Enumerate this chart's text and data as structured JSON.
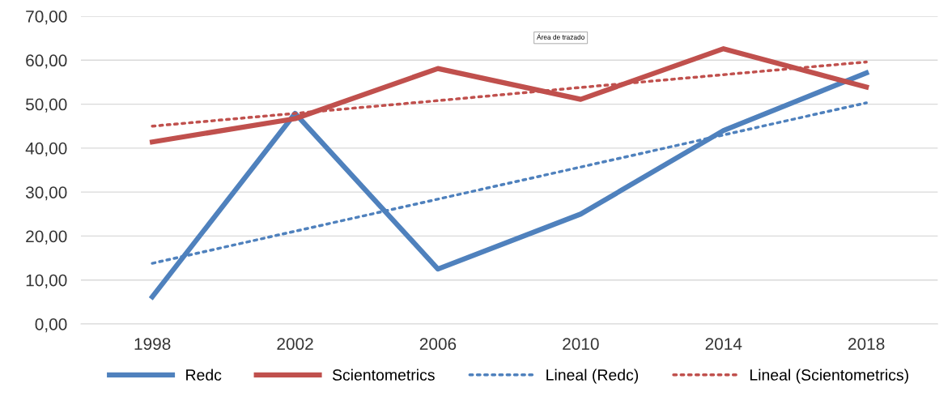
{
  "chart_data": {
    "type": "line",
    "categories": [
      "1998",
      "2002",
      "2006",
      "2010",
      "2014",
      "2018"
    ],
    "series": [
      {
        "name": "Redc",
        "color": "#4f81bd",
        "values": [
          6.2,
          47.9,
          12.5,
          25.0,
          44.0,
          57.1
        ],
        "line_style": "solid"
      },
      {
        "name": "Scientometrics",
        "color": "#c0504d",
        "values": [
          41.4,
          46.7,
          58.1,
          51.1,
          62.6,
          53.9
        ],
        "line_style": "solid"
      },
      {
        "name": "Lineal (Redc)",
        "color": "#4f81bd",
        "values": [
          13.8,
          21.1,
          28.4,
          35.7,
          43.0,
          50.3
        ],
        "line_style": "dotted"
      },
      {
        "name": "Lineal (Scientometrics)",
        "color": "#c0504d",
        "values": [
          45.0,
          47.9,
          50.8,
          53.8,
          56.7,
          59.6
        ],
        "line_style": "dotted"
      }
    ],
    "ylim": [
      0,
      70
    ],
    "yticks": [
      {
        "value": 0,
        "label": "0,00"
      },
      {
        "value": 10,
        "label": "10,00"
      },
      {
        "value": 20,
        "label": "20,00"
      },
      {
        "value": 30,
        "label": "30,00"
      },
      {
        "value": 40,
        "label": "40,00"
      },
      {
        "value": 50,
        "label": "50,00"
      },
      {
        "value": 60,
        "label": "60,00"
      },
      {
        "value": 70,
        "label": "70,00"
      }
    ],
    "grid": "y",
    "legend": "bottom",
    "marker": "none",
    "annotations": [
      "Área de trazado"
    ]
  }
}
